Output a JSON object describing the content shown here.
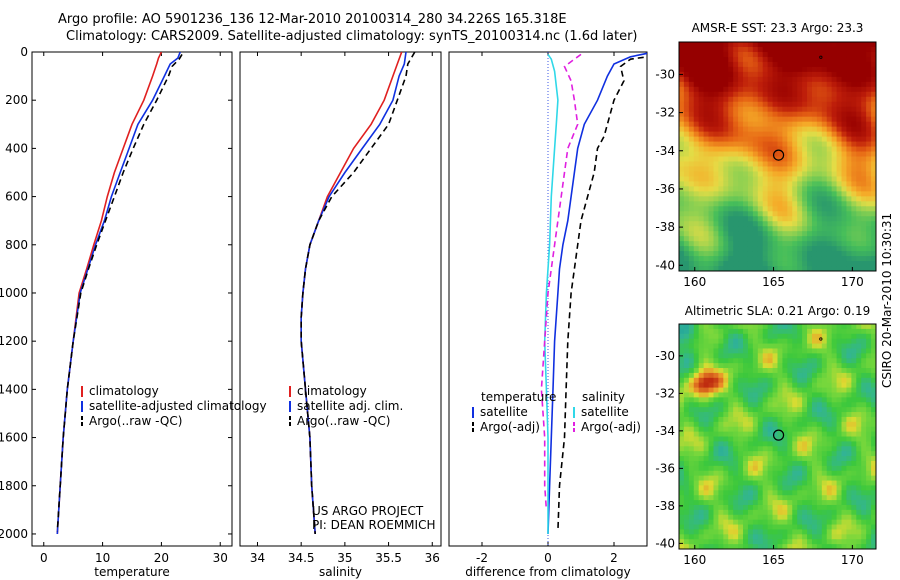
{
  "header": {
    "line1": "Argo profile: AO 5901236_136 12-Mar-2010 20100314_280 34.226S 165.318E",
    "line2": "Climatology: CARS2009. Satellite-adjusted climatology: synTS_20100314.nc (1.6d later)"
  },
  "credit": "CSIRO 20-Mar-2010 10:30:31",
  "colors": {
    "red": "#e02020",
    "blue": "#1030e0",
    "black": "#000000",
    "cyan": "#30d8e8",
    "magenta": "#e020e0"
  },
  "chart_data": [
    {
      "type": "line",
      "xlabel": "temperature",
      "xlim": [
        -2,
        32
      ],
      "ylim": [
        2050,
        0
      ],
      "xticks": [
        0,
        10,
        20,
        30
      ],
      "yticks": [
        0,
        200,
        400,
        600,
        800,
        1000,
        1200,
        1400,
        1600,
        1800,
        2000
      ],
      "legend": [
        "climatology",
        "satellite-adjusted climatology",
        "Argo(..raw -QC)"
      ],
      "series": [
        {
          "name": "climatology",
          "color": "red",
          "dash": false,
          "points": [
            [
              20.0,
              0
            ],
            [
              19.5,
              25
            ],
            [
              19.2,
              50
            ],
            [
              18.5,
              100
            ],
            [
              17.0,
              200
            ],
            [
              15.0,
              300
            ],
            [
              13.5,
              400
            ],
            [
              12.0,
              500
            ],
            [
              10.8,
              600
            ],
            [
              9.8,
              700
            ],
            [
              8.5,
              800
            ],
            [
              7.3,
              900
            ],
            [
              6.0,
              1000
            ],
            [
              5.0,
              1200
            ],
            [
              4.0,
              1400
            ],
            [
              3.3,
              1600
            ],
            [
              2.8,
              1800
            ],
            [
              2.3,
              2000
            ]
          ]
        },
        {
          "name": "satellite-adjusted climatology",
          "color": "blue",
          "dash": false,
          "points": [
            [
              23.2,
              0
            ],
            [
              22.8,
              25
            ],
            [
              21.5,
              50
            ],
            [
              20.5,
              100
            ],
            [
              18.5,
              200
            ],
            [
              16.0,
              300
            ],
            [
              14.5,
              400
            ],
            [
              13.0,
              500
            ],
            [
              11.5,
              600
            ],
            [
              10.3,
              700
            ],
            [
              8.8,
              800
            ],
            [
              7.5,
              900
            ],
            [
              6.2,
              1000
            ],
            [
              5.0,
              1200
            ],
            [
              4.0,
              1400
            ],
            [
              3.3,
              1600
            ],
            [
              2.8,
              1800
            ],
            [
              2.3,
              2000
            ]
          ]
        },
        {
          "name": "Argo(..raw -QC)",
          "color": "black",
          "dash": true,
          "points": [
            [
              23.5,
              10
            ],
            [
              23.0,
              30
            ],
            [
              21.8,
              60
            ],
            [
              21.2,
              100
            ],
            [
              19.2,
              200
            ],
            [
              17.0,
              300
            ],
            [
              15.2,
              400
            ],
            [
              13.5,
              500
            ],
            [
              12.0,
              600
            ],
            [
              10.5,
              700
            ],
            [
              9.0,
              800
            ],
            [
              7.6,
              900
            ],
            [
              6.3,
              1000
            ],
            [
              5.0,
              1200
            ],
            [
              4.0,
              1400
            ],
            [
              3.3,
              1600
            ],
            [
              2.8,
              1800
            ],
            [
              2.3,
              1990
            ]
          ]
        }
      ]
    },
    {
      "type": "line",
      "xlabel": "salinity",
      "xlim": [
        33.8,
        36.1
      ],
      "ylim": [
        2050,
        0
      ],
      "xticks": [
        34,
        34.5,
        35,
        35.5,
        36
      ],
      "yticks": [],
      "legend": [
        "climatology",
        "satellite adj. clim.",
        "Argo(..raw -QC)"
      ],
      "annotation": [
        "US ARGO PROJECT",
        "PI: DEAN ROEMMICH"
      ],
      "series": [
        {
          "name": "climatology",
          "color": "red",
          "dash": false,
          "points": [
            [
              35.65,
              0
            ],
            [
              35.6,
              50
            ],
            [
              35.55,
              100
            ],
            [
              35.45,
              200
            ],
            [
              35.3,
              300
            ],
            [
              35.1,
              400
            ],
            [
              34.95,
              500
            ],
            [
              34.8,
              600
            ],
            [
              34.7,
              700
            ],
            [
              34.6,
              800
            ],
            [
              34.55,
              900
            ],
            [
              34.52,
              1000
            ],
            [
              34.5,
              1100
            ],
            [
              34.5,
              1200
            ],
            [
              34.55,
              1400
            ],
            [
              34.6,
              1600
            ],
            [
              34.62,
              1800
            ],
            [
              34.66,
              2000
            ]
          ]
        },
        {
          "name": "satellite adj. clim.",
          "color": "blue",
          "dash": false,
          "points": [
            [
              35.7,
              0
            ],
            [
              35.68,
              50
            ],
            [
              35.62,
              100
            ],
            [
              35.55,
              200
            ],
            [
              35.4,
              300
            ],
            [
              35.2,
              400
            ],
            [
              35.0,
              500
            ],
            [
              34.82,
              600
            ],
            [
              34.7,
              700
            ],
            [
              34.6,
              800
            ],
            [
              34.55,
              900
            ],
            [
              34.52,
              1000
            ],
            [
              34.5,
              1100
            ],
            [
              34.5,
              1200
            ],
            [
              34.55,
              1400
            ],
            [
              34.6,
              1600
            ],
            [
              34.62,
              1800
            ],
            [
              34.66,
              2000
            ]
          ]
        },
        {
          "name": "Argo(..raw -QC)",
          "color": "black",
          "dash": true,
          "points": [
            [
              35.8,
              0
            ],
            [
              35.72,
              50
            ],
            [
              35.7,
              100
            ],
            [
              35.6,
              200
            ],
            [
              35.5,
              300
            ],
            [
              35.3,
              400
            ],
            [
              35.1,
              500
            ],
            [
              34.85,
              600
            ],
            [
              34.7,
              700
            ],
            [
              34.6,
              800
            ],
            [
              34.55,
              900
            ],
            [
              34.52,
              1000
            ],
            [
              34.5,
              1100
            ],
            [
              34.5,
              1200
            ],
            [
              34.55,
              1400
            ],
            [
              34.6,
              1600
            ],
            [
              34.62,
              1800
            ],
            [
              34.66,
              2000
            ]
          ]
        }
      ]
    },
    {
      "type": "line",
      "xlabel": "difference from climatology",
      "xlim": [
        -3,
        3
      ],
      "ylim": [
        2050,
        0
      ],
      "xticks": [
        -2,
        0,
        2
      ],
      "yticks": [],
      "legend_groups": [
        {
          "title": "temperature",
          "items": [
            "satellite",
            "Argo(-adj)"
          ]
        },
        {
          "title": "salinity",
          "items": [
            "satellite",
            "Argo(-adj)"
          ]
        }
      ],
      "series": [
        {
          "name": "temperature satellite",
          "color": "blue",
          "dash": false,
          "points": [
            [
              3.2,
              0
            ],
            [
              2.5,
              20
            ],
            [
              2.0,
              50
            ],
            [
              1.8,
              100
            ],
            [
              1.5,
              200
            ],
            [
              1.1,
              300
            ],
            [
              0.9,
              400
            ],
            [
              0.8,
              500
            ],
            [
              0.7,
              600
            ],
            [
              0.6,
              700
            ],
            [
              0.45,
              800
            ],
            [
              0.35,
              900
            ],
            [
              0.3,
              1000
            ],
            [
              0.2,
              1200
            ],
            [
              0.15,
              1400
            ],
            [
              0.1,
              1600
            ],
            [
              0.05,
              1800
            ],
            [
              0.0,
              2000
            ]
          ]
        },
        {
          "name": "temperature Argo(-adj)",
          "color": "black",
          "dash": true,
          "points": [
            [
              3.5,
              10
            ],
            [
              2.5,
              30
            ],
            [
              2.2,
              60
            ],
            [
              2.3,
              120
            ],
            [
              2.0,
              200
            ],
            [
              1.7,
              350
            ],
            [
              1.5,
              400
            ],
            [
              1.4,
              500
            ],
            [
              1.2,
              600
            ],
            [
              1.0,
              700
            ],
            [
              0.9,
              800
            ],
            [
              0.8,
              900
            ],
            [
              0.7,
              1000
            ],
            [
              0.6,
              1200
            ],
            [
              0.55,
              1400
            ],
            [
              0.5,
              1600
            ],
            [
              0.35,
              1800
            ],
            [
              0.3,
              1990
            ]
          ]
        },
        {
          "name": "salinity satellite",
          "color": "cyan",
          "dash": false,
          "points": [
            [
              0.0,
              10
            ],
            [
              0.1,
              30
            ],
            [
              0.2,
              80
            ],
            [
              0.3,
              200
            ],
            [
              0.25,
              300
            ],
            [
              0.2,
              400
            ],
            [
              0.1,
              600
            ],
            [
              0.05,
              800
            ],
            [
              -0.05,
              1000
            ],
            [
              -0.1,
              1200
            ],
            [
              -0.05,
              1400
            ],
            [
              0.0,
              1600
            ],
            [
              0.0,
              1800
            ],
            [
              0.0,
              2000
            ]
          ]
        },
        {
          "name": "salinity Argo(-adj)",
          "color": "magenta",
          "dash": true,
          "points": [
            [
              1.0,
              10
            ],
            [
              0.8,
              30
            ],
            [
              0.5,
              60
            ],
            [
              0.7,
              120
            ],
            [
              0.8,
              200
            ],
            [
              0.9,
              300
            ],
            [
              0.6,
              400
            ],
            [
              0.5,
              500
            ],
            [
              0.4,
              600
            ],
            [
              0.2,
              800
            ],
            [
              0.0,
              1000
            ],
            [
              -0.1,
              1200
            ],
            [
              -0.2,
              1400
            ],
            [
              -0.1,
              1600
            ],
            [
              -0.1,
              1800
            ],
            [
              -0.05,
              1900
            ]
          ]
        }
      ]
    },
    {
      "type": "heatmap",
      "title": "AMSR-E SST: 23.3 Argo: 23.3",
      "xlim": [
        159,
        171.5
      ],
      "ylim": [
        -40.3,
        -28.3
      ],
      "xticks": [
        160,
        165,
        170
      ],
      "yticks": [
        -30,
        -32,
        -34,
        -36,
        -38,
        -40
      ],
      "argo_position": [
        165.318,
        -34.226
      ],
      "map_kind": "sst"
    },
    {
      "type": "heatmap",
      "title": "Altimetric SLA: 0.21 Argo: 0.19",
      "xlim": [
        159,
        171.5
      ],
      "ylim": [
        -40.3,
        -28.3
      ],
      "xticks": [
        160,
        165,
        170
      ],
      "yticks": [
        -30,
        -32,
        -34,
        -36,
        -38,
        -40
      ],
      "argo_position": [
        165.318,
        -34.226
      ],
      "map_kind": "sla"
    }
  ]
}
